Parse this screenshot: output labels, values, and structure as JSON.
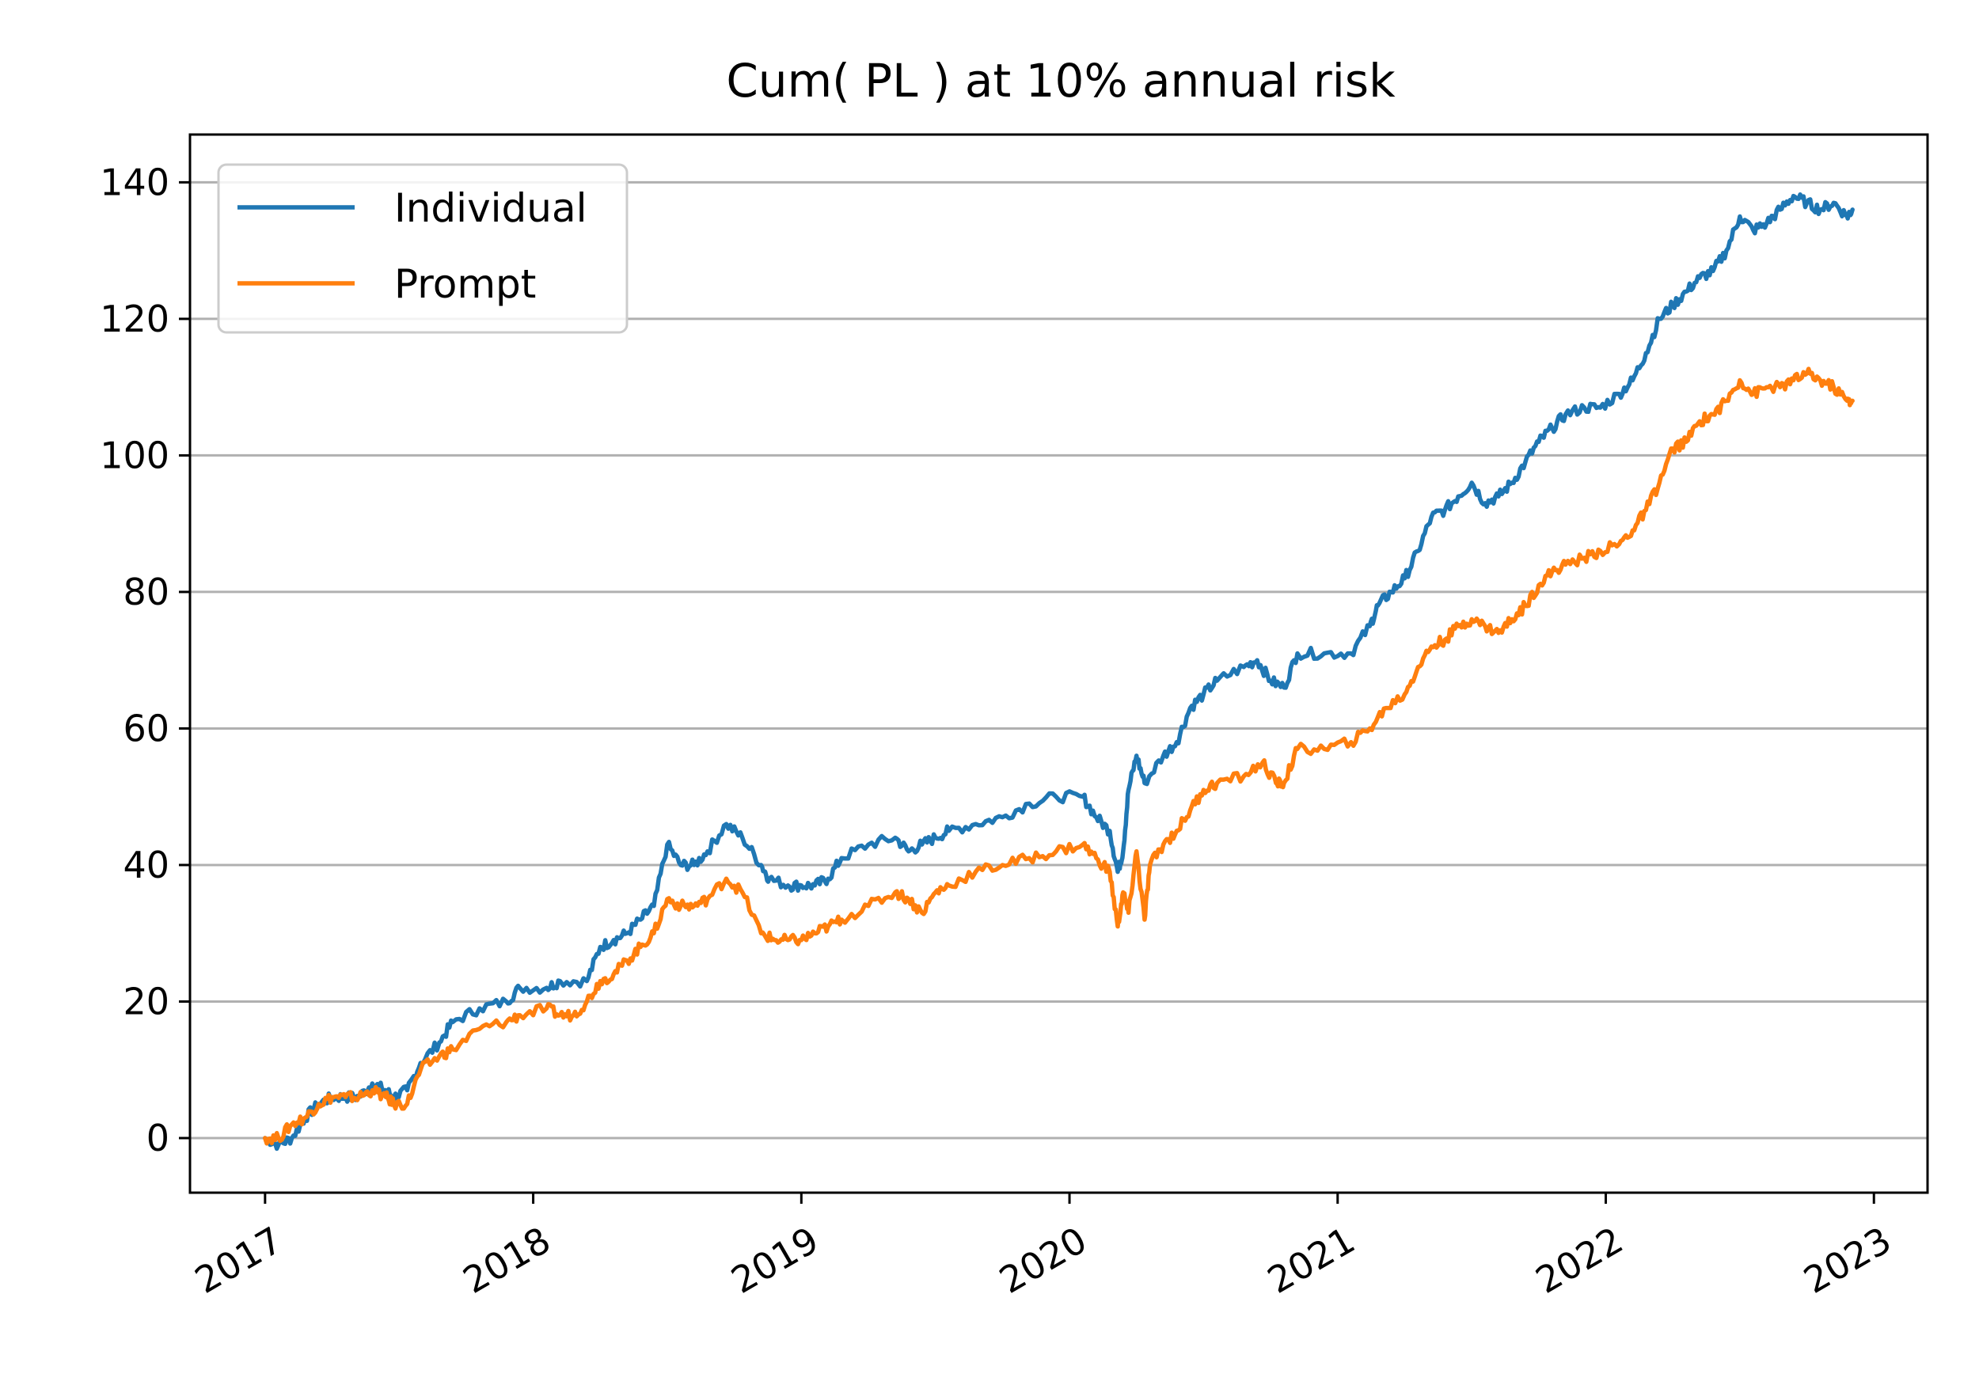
{
  "chart_data": {
    "type": "line",
    "title": "Cum( PL ) at 10% annual risk",
    "xlabel": "",
    "ylabel": "",
    "x_ticks": [
      "2017",
      "2018",
      "2019",
      "2020",
      "2021",
      "2022",
      "2023"
    ],
    "y_ticks": [
      "0",
      "20",
      "40",
      "60",
      "80",
      "100",
      "120",
      "140"
    ],
    "xlim": [
      2016.72,
      2023.2
    ],
    "ylim": [
      -8,
      147
    ],
    "grid": "horizontal",
    "legend": "top-left",
    "series": [
      {
        "name": "Individual",
        "color": "#1f77b4",
        "points": [
          [
            2017.0,
            0
          ],
          [
            2017.05,
            -1
          ],
          [
            2017.1,
            0
          ],
          [
            2017.15,
            3
          ],
          [
            2017.2,
            5
          ],
          [
            2017.25,
            6
          ],
          [
            2017.3,
            6
          ],
          [
            2017.35,
            6
          ],
          [
            2017.4,
            8
          ],
          [
            2017.45,
            7
          ],
          [
            2017.48,
            6
          ],
          [
            2017.53,
            7
          ],
          [
            2017.58,
            11
          ],
          [
            2017.65,
            14
          ],
          [
            2017.7,
            17
          ],
          [
            2017.8,
            19
          ],
          [
            2017.9,
            20
          ],
          [
            2017.95,
            22
          ],
          [
            2018.05,
            22
          ],
          [
            2018.1,
            23
          ],
          [
            2018.2,
            23
          ],
          [
            2018.25,
            28
          ],
          [
            2018.3,
            29
          ],
          [
            2018.35,
            30
          ],
          [
            2018.4,
            32
          ],
          [
            2018.45,
            34
          ],
          [
            2018.5,
            43
          ],
          [
            2018.55,
            40
          ],
          [
            2018.6,
            40
          ],
          [
            2018.65,
            42
          ],
          [
            2018.72,
            46
          ],
          [
            2018.78,
            44
          ],
          [
            2018.85,
            40
          ],
          [
            2018.88,
            38
          ],
          [
            2018.95,
            37
          ],
          [
            2019.0,
            37
          ],
          [
            2019.05,
            37
          ],
          [
            2019.1,
            38
          ],
          [
            2019.15,
            41
          ],
          [
            2019.25,
            43
          ],
          [
            2019.35,
            44
          ],
          [
            2019.4,
            42
          ],
          [
            2019.45,
            43
          ],
          [
            2019.5,
            44
          ],
          [
            2019.55,
            45
          ],
          [
            2019.65,
            46
          ],
          [
            2019.75,
            47
          ],
          [
            2019.85,
            49
          ],
          [
            2019.95,
            50
          ],
          [
            2020.05,
            50
          ],
          [
            2020.1,
            47
          ],
          [
            2020.15,
            45
          ],
          [
            2020.18,
            39
          ],
          [
            2020.2,
            42
          ],
          [
            2020.22,
            51
          ],
          [
            2020.25,
            56
          ],
          [
            2020.28,
            52
          ],
          [
            2020.35,
            56
          ],
          [
            2020.4,
            58
          ],
          [
            2020.45,
            63
          ],
          [
            2020.5,
            65
          ],
          [
            2020.55,
            67
          ],
          [
            2020.65,
            69
          ],
          [
            2020.7,
            70
          ],
          [
            2020.75,
            67
          ],
          [
            2020.8,
            66
          ],
          [
            2020.85,
            71
          ],
          [
            2020.95,
            71
          ],
          [
            2021.05,
            71
          ],
          [
            2021.12,
            75
          ],
          [
            2021.15,
            78
          ],
          [
            2021.2,
            80
          ],
          [
            2021.25,
            82
          ],
          [
            2021.3,
            86
          ],
          [
            2021.35,
            91
          ],
          [
            2021.4,
            92
          ],
          [
            2021.45,
            94
          ],
          [
            2021.5,
            96
          ],
          [
            2021.55,
            93
          ],
          [
            2021.6,
            94
          ],
          [
            2021.65,
            96
          ],
          [
            2021.7,
            99
          ],
          [
            2021.75,
            102
          ],
          [
            2021.8,
            104
          ],
          [
            2021.85,
            106
          ],
          [
            2021.92,
            107
          ],
          [
            2021.98,
            107
          ],
          [
            2022.05,
            109
          ],
          [
            2022.1,
            111
          ],
          [
            2022.15,
            115
          ],
          [
            2022.2,
            120
          ],
          [
            2022.25,
            122
          ],
          [
            2022.3,
            124
          ],
          [
            2022.35,
            126
          ],
          [
            2022.4,
            127
          ],
          [
            2022.45,
            130
          ],
          [
            2022.5,
            135
          ],
          [
            2022.55,
            133
          ],
          [
            2022.6,
            134
          ],
          [
            2022.65,
            136
          ],
          [
            2022.7,
            138
          ],
          [
            2022.75,
            137
          ],
          [
            2022.8,
            136
          ],
          [
            2022.85,
            137
          ],
          [
            2022.9,
            135
          ],
          [
            2022.92,
            136
          ]
        ]
      },
      {
        "name": "Prompt",
        "color": "#ff7f0e",
        "points": [
          [
            2017.0,
            0
          ],
          [
            2017.05,
            0
          ],
          [
            2017.1,
            2
          ],
          [
            2017.15,
            3
          ],
          [
            2017.2,
            5
          ],
          [
            2017.25,
            6
          ],
          [
            2017.3,
            6
          ],
          [
            2017.35,
            6
          ],
          [
            2017.4,
            7
          ],
          [
            2017.45,
            6
          ],
          [
            2017.48,
            5
          ],
          [
            2017.53,
            5
          ],
          [
            2017.58,
            10
          ],
          [
            2017.65,
            12
          ],
          [
            2017.7,
            13
          ],
          [
            2017.8,
            16
          ],
          [
            2017.9,
            17
          ],
          [
            2017.95,
            18
          ],
          [
            2018.05,
            19
          ],
          [
            2018.1,
            18
          ],
          [
            2018.15,
            18
          ],
          [
            2018.2,
            20
          ],
          [
            2018.25,
            23
          ],
          [
            2018.3,
            24
          ],
          [
            2018.35,
            26
          ],
          [
            2018.4,
            28
          ],
          [
            2018.45,
            30
          ],
          [
            2018.5,
            35
          ],
          [
            2018.55,
            34
          ],
          [
            2018.6,
            34
          ],
          [
            2018.65,
            35
          ],
          [
            2018.72,
            38
          ],
          [
            2018.78,
            36
          ],
          [
            2018.85,
            30
          ],
          [
            2018.9,
            29
          ],
          [
            2018.95,
            29
          ],
          [
            2019.0,
            29
          ],
          [
            2019.05,
            30
          ],
          [
            2019.1,
            31
          ],
          [
            2019.15,
            32
          ],
          [
            2019.25,
            34
          ],
          [
            2019.35,
            36
          ],
          [
            2019.4,
            35
          ],
          [
            2019.45,
            33
          ],
          [
            2019.5,
            36
          ],
          [
            2019.55,
            37
          ],
          [
            2019.65,
            39
          ],
          [
            2019.75,
            40
          ],
          [
            2019.85,
            41
          ],
          [
            2019.95,
            42
          ],
          [
            2020.05,
            43
          ],
          [
            2020.1,
            41
          ],
          [
            2020.15,
            39
          ],
          [
            2020.18,
            31
          ],
          [
            2020.2,
            36
          ],
          [
            2020.22,
            33
          ],
          [
            2020.25,
            42
          ],
          [
            2020.28,
            32
          ],
          [
            2020.3,
            40
          ],
          [
            2020.35,
            43
          ],
          [
            2020.4,
            45
          ],
          [
            2020.45,
            48
          ],
          [
            2020.5,
            51
          ],
          [
            2020.55,
            52
          ],
          [
            2020.65,
            53
          ],
          [
            2020.72,
            55
          ],
          [
            2020.77,
            52
          ],
          [
            2020.8,
            52
          ],
          [
            2020.85,
            57
          ],
          [
            2020.95,
            57
          ],
          [
            2021.05,
            58
          ],
          [
            2021.12,
            60
          ],
          [
            2021.18,
            63
          ],
          [
            2021.25,
            65
          ],
          [
            2021.3,
            69
          ],
          [
            2021.35,
            72
          ],
          [
            2021.4,
            73
          ],
          [
            2021.45,
            75
          ],
          [
            2021.5,
            76
          ],
          [
            2021.55,
            75
          ],
          [
            2021.6,
            74
          ],
          [
            2021.65,
            76
          ],
          [
            2021.7,
            78
          ],
          [
            2021.75,
            81
          ],
          [
            2021.8,
            83
          ],
          [
            2021.85,
            84
          ],
          [
            2021.92,
            85
          ],
          [
            2021.98,
            86
          ],
          [
            2022.05,
            87
          ],
          [
            2022.1,
            89
          ],
          [
            2022.15,
            92
          ],
          [
            2022.2,
            96
          ],
          [
            2022.25,
            101
          ],
          [
            2022.3,
            102
          ],
          [
            2022.35,
            105
          ],
          [
            2022.4,
            106
          ],
          [
            2022.45,
            108
          ],
          [
            2022.5,
            111
          ],
          [
            2022.55,
            109
          ],
          [
            2022.6,
            110
          ],
          [
            2022.65,
            110
          ],
          [
            2022.7,
            111
          ],
          [
            2022.75,
            112
          ],
          [
            2022.8,
            111
          ],
          [
            2022.85,
            110
          ],
          [
            2022.9,
            108
          ],
          [
            2022.92,
            108
          ]
        ]
      }
    ]
  }
}
